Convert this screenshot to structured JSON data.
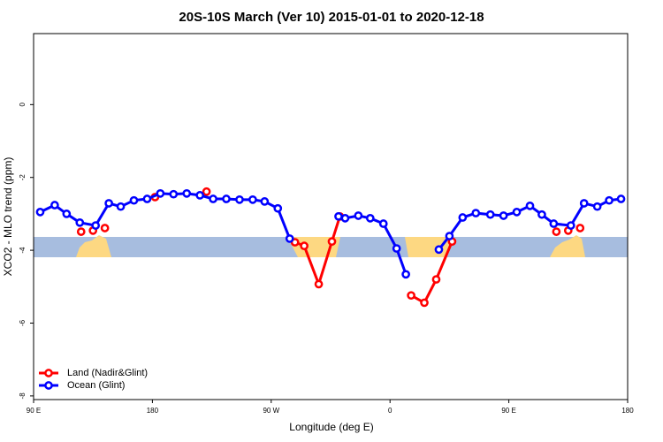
{
  "chart_data": {
    "type": "line",
    "title": "20S-10S March (Ver 10)   2015-01-01 to 2020-12-18",
    "x_label": "Longitude (deg E)",
    "y_label": "XCO2 - MLO trend (ppm)",
    "xlim": [
      90,
      540
    ],
    "ylim": [
      -8.1,
      1.95
    ],
    "xticks": [
      {
        "value": 90,
        "label": "90 E"
      },
      180,
      {
        "value": 270,
        "label": "90 W"
      },
      {
        "value": 360,
        "label": "0"
      },
      {
        "value": 450,
        "label": "90 E"
      },
      {
        "value": 540,
        "label": "180"
      }
    ],
    "yticks": [
      -8,
      -6,
      -4,
      -2,
      0
    ],
    "legend": "bottom-left",
    "series": [
      {
        "name": "Land (Nadir&Glint)",
        "color": "#ff0000",
        "x": [
          126,
          130,
          135,
          140,
          144,
          160,
          182,
          200,
          221,
          250,
          288,
          295,
          306,
          316,
          322,
          350,
          376,
          386,
          395,
          407,
          450,
          486,
          490,
          495,
          500,
          504
        ],
        "values": [
          -3.49,
          null,
          -3.46,
          null,
          -3.39,
          null,
          -2.54,
          null,
          -2.39,
          null,
          -3.78,
          -3.88,
          -4.93,
          -3.76,
          -3.07,
          null,
          -5.24,
          -5.44,
          -4.8,
          -3.76,
          null,
          -3.49,
          null,
          -3.46,
          null,
          -3.39
        ]
      },
      {
        "name": "Ocean (Glint)",
        "color": "#0000ff",
        "x": [
          95,
          106,
          115,
          125,
          137,
          147,
          156,
          166,
          176,
          186,
          196,
          206,
          216,
          226,
          236,
          246,
          256,
          265,
          275,
          284,
          300,
          321,
          326,
          336,
          345,
          355,
          365,
          372,
          385,
          397,
          405,
          415,
          425,
          436,
          446,
          456,
          466,
          475,
          484,
          497,
          507,
          517,
          526,
          535
        ],
        "values": [
          -2.95,
          -2.76,
          -3.0,
          -3.24,
          -3.32,
          -2.71,
          -2.8,
          -2.63,
          -2.59,
          -2.44,
          -2.46,
          -2.44,
          -2.49,
          -2.59,
          -2.59,
          -2.61,
          -2.61,
          -2.66,
          -2.85,
          -3.68,
          null,
          -3.07,
          -3.12,
          -3.05,
          -3.12,
          -3.27,
          -3.95,
          -4.66,
          null,
          -3.98,
          -3.61,
          -3.1,
          -2.98,
          -3.02,
          -3.05,
          -2.95,
          -2.78,
          -3.02,
          -3.27,
          -3.32,
          -2.71,
          -2.8,
          -2.63,
          -2.59
        ]
      }
    ]
  }
}
